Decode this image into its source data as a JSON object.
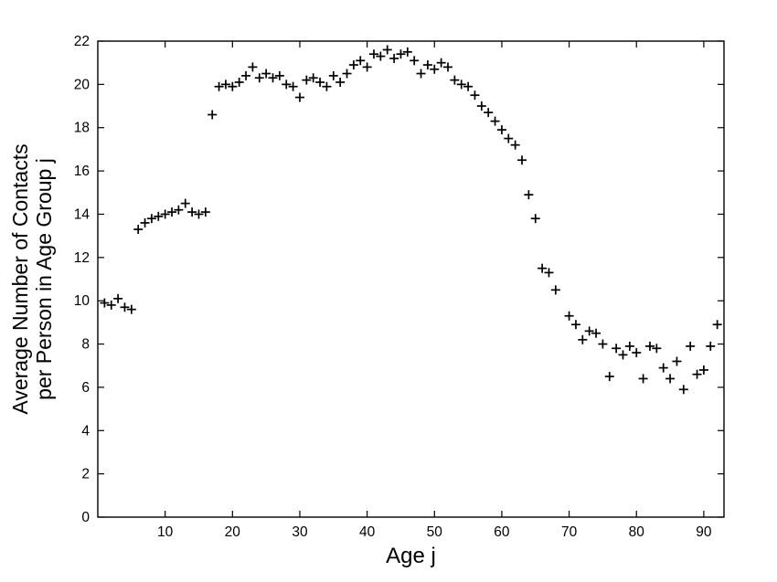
{
  "chart_data": {
    "type": "scatter",
    "title": "",
    "xlabel": "Age j",
    "ylabel_lines": [
      "Average Number of Contacts",
      "per Person in Age Group j"
    ],
    "xlim": [
      0,
      93
    ],
    "ylim": [
      0,
      22
    ],
    "xticks": [
      10,
      20,
      30,
      40,
      50,
      60,
      70,
      80,
      90
    ],
    "yticks": [
      0,
      2,
      4,
      6,
      8,
      10,
      12,
      14,
      16,
      18,
      20,
      22
    ],
    "grid": false,
    "legend": "none",
    "marker": "+",
    "marker_color": "#000000",
    "background_color": "#ffffff",
    "points": [
      [
        1,
        9.9
      ],
      [
        2,
        9.8
      ],
      [
        3,
        10.1
      ],
      [
        4,
        9.7
      ],
      [
        5,
        9.6
      ],
      [
        6,
        13.3
      ],
      [
        7,
        13.6
      ],
      [
        8,
        13.8
      ],
      [
        9,
        13.9
      ],
      [
        10,
        14.0
      ],
      [
        11,
        14.1
      ],
      [
        12,
        14.2
      ],
      [
        13,
        14.5
      ],
      [
        14,
        14.1
      ],
      [
        15,
        14.0
      ],
      [
        16,
        14.1
      ],
      [
        17,
        18.6
      ],
      [
        18,
        19.9
      ],
      [
        19,
        20.0
      ],
      [
        20,
        19.9
      ],
      [
        21,
        20.1
      ],
      [
        22,
        20.4
      ],
      [
        23,
        20.8
      ],
      [
        24,
        20.3
      ],
      [
        25,
        20.5
      ],
      [
        26,
        20.3
      ],
      [
        27,
        20.4
      ],
      [
        28,
        20.0
      ],
      [
        29,
        19.9
      ],
      [
        30,
        19.4
      ],
      [
        31,
        20.2
      ],
      [
        32,
        20.3
      ],
      [
        33,
        20.1
      ],
      [
        34,
        19.9
      ],
      [
        35,
        20.4
      ],
      [
        36,
        20.1
      ],
      [
        37,
        20.5
      ],
      [
        38,
        20.9
      ],
      [
        39,
        21.1
      ],
      [
        40,
        20.8
      ],
      [
        41,
        21.4
      ],
      [
        42,
        21.3
      ],
      [
        43,
        21.6
      ],
      [
        44,
        21.2
      ],
      [
        45,
        21.4
      ],
      [
        46,
        21.5
      ],
      [
        47,
        21.1
      ],
      [
        48,
        20.5
      ],
      [
        49,
        20.9
      ],
      [
        50,
        20.7
      ],
      [
        51,
        21.0
      ],
      [
        52,
        20.8
      ],
      [
        53,
        20.2
      ],
      [
        54,
        20.0
      ],
      [
        55,
        19.9
      ],
      [
        56,
        19.5
      ],
      [
        57,
        19.0
      ],
      [
        58,
        18.7
      ],
      [
        59,
        18.3
      ],
      [
        60,
        17.9
      ],
      [
        61,
        17.5
      ],
      [
        62,
        17.2
      ],
      [
        63,
        16.5
      ],
      [
        64,
        14.9
      ],
      [
        65,
        13.8
      ],
      [
        66,
        11.5
      ],
      [
        67,
        11.3
      ],
      [
        68,
        10.5
      ],
      [
        70,
        9.3
      ],
      [
        71,
        8.9
      ],
      [
        72,
        8.2
      ],
      [
        73,
        8.6
      ],
      [
        74,
        8.5
      ],
      [
        75,
        8.0
      ],
      [
        76,
        6.5
      ],
      [
        77,
        7.8
      ],
      [
        78,
        7.5
      ],
      [
        79,
        7.9
      ],
      [
        80,
        7.6
      ],
      [
        81,
        6.4
      ],
      [
        82,
        7.9
      ],
      [
        83,
        7.8
      ],
      [
        84,
        6.9
      ],
      [
        85,
        6.4
      ],
      [
        86,
        7.2
      ],
      [
        87,
        5.9
      ],
      [
        88,
        7.9
      ],
      [
        89,
        6.6
      ],
      [
        90,
        6.8
      ],
      [
        91,
        7.9
      ],
      [
        92,
        8.9
      ]
    ]
  }
}
